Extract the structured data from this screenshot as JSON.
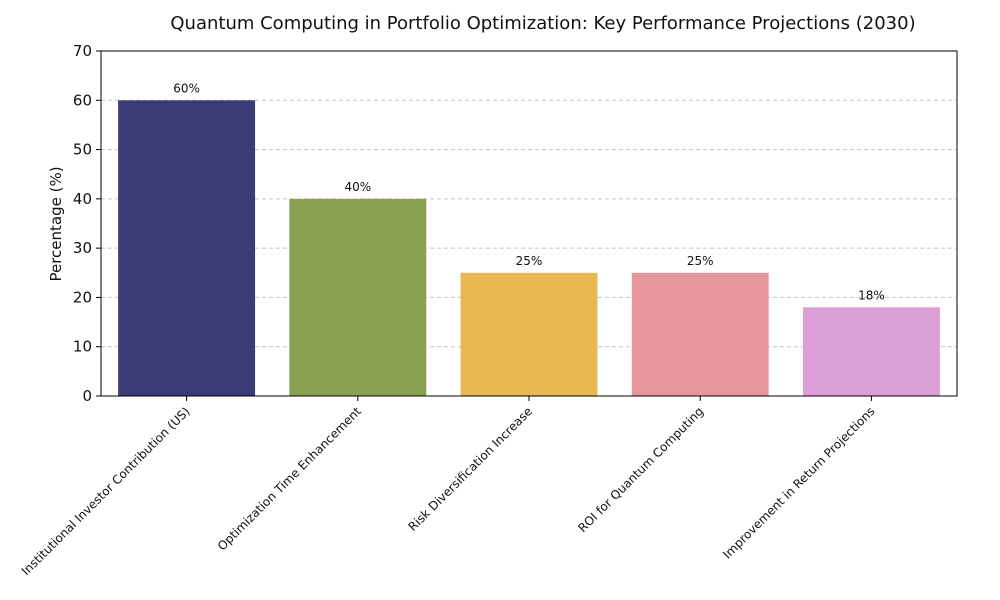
{
  "chart_data": {
    "type": "bar",
    "title": "Quantum Computing in Portfolio Optimization: Key Performance Projections (2030)",
    "xlabel": "",
    "ylabel": "Percentage (%)",
    "ylim": [
      0,
      70
    ],
    "yticks": [
      0,
      10,
      20,
      30,
      40,
      50,
      60,
      70
    ],
    "grid": true,
    "categories": [
      "Institutional Investor Contribution (US)",
      "Optimization Time Enhancement",
      "Risk Diversification Increase",
      "ROI for Quantum Computing",
      "Improvement in Return Projections"
    ],
    "values": [
      60,
      40,
      25,
      25,
      18
    ],
    "data_labels": [
      "60%",
      "40%",
      "25%",
      "25%",
      "18%"
    ],
    "colors": [
      "#3b3b77",
      "#8ba152",
      "#e8b952",
      "#e6979b",
      "#dc9ed6"
    ]
  }
}
